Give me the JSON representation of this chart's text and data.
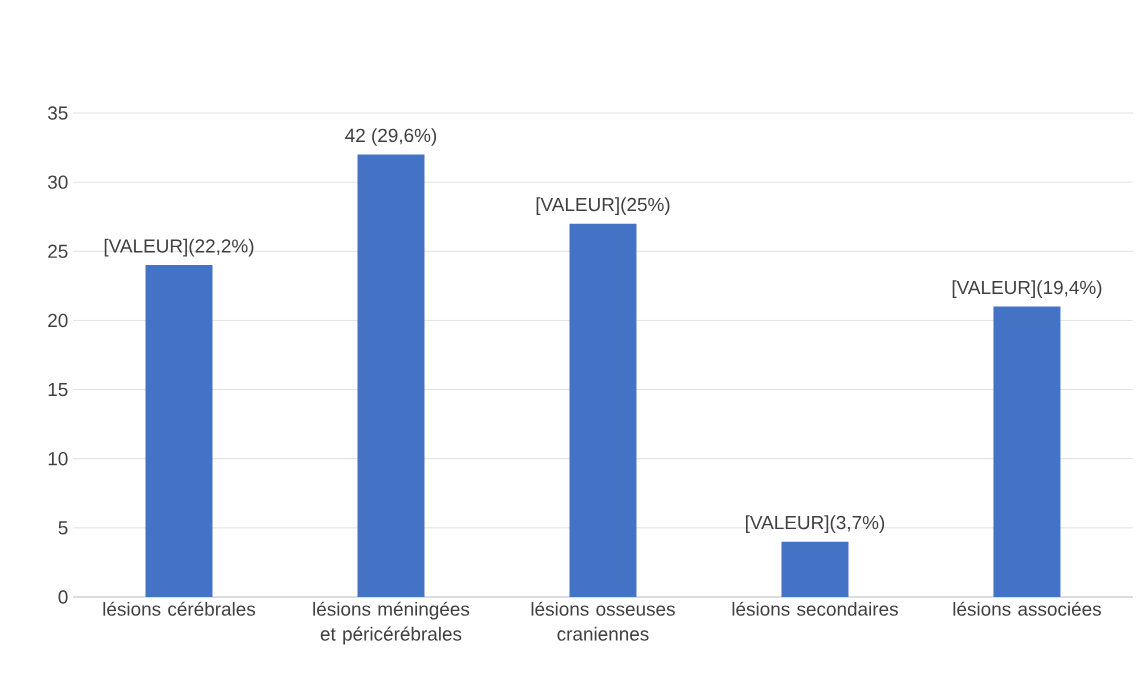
{
  "chart_data": {
    "type": "bar",
    "categories": [
      "lésions cérébrales",
      "lésions méningées et péricérébrales",
      "lésions osseuses craniennes",
      "lésions secondaires",
      "lésions associées"
    ],
    "values": [
      24,
      32,
      27,
      4,
      21
    ],
    "annotations": [
      {
        "text": "[VALEUR](22,2%)",
        "x": "lésions cérébrales",
        "y": 24
      },
      {
        "text": "42 (29,6%)",
        "x": "lésions méningées et péricérébrales",
        "y": 32
      },
      {
        "text": "[VALEUR](25%)",
        "x": "lésions osseuses craniennes",
        "y": 27
      },
      {
        "text": "[VALEUR](3,7%)",
        "x": "lésions secondaires",
        "y": 4
      },
      {
        "text": "[VALEUR](19,4%)",
        "x": "lésions associées",
        "y": 21
      }
    ],
    "color": "#4472c4",
    "ylim": [
      0,
      35
    ],
    "yticks": [
      0,
      5,
      10,
      15,
      20,
      25,
      30,
      35
    ],
    "grid": "y"
  }
}
